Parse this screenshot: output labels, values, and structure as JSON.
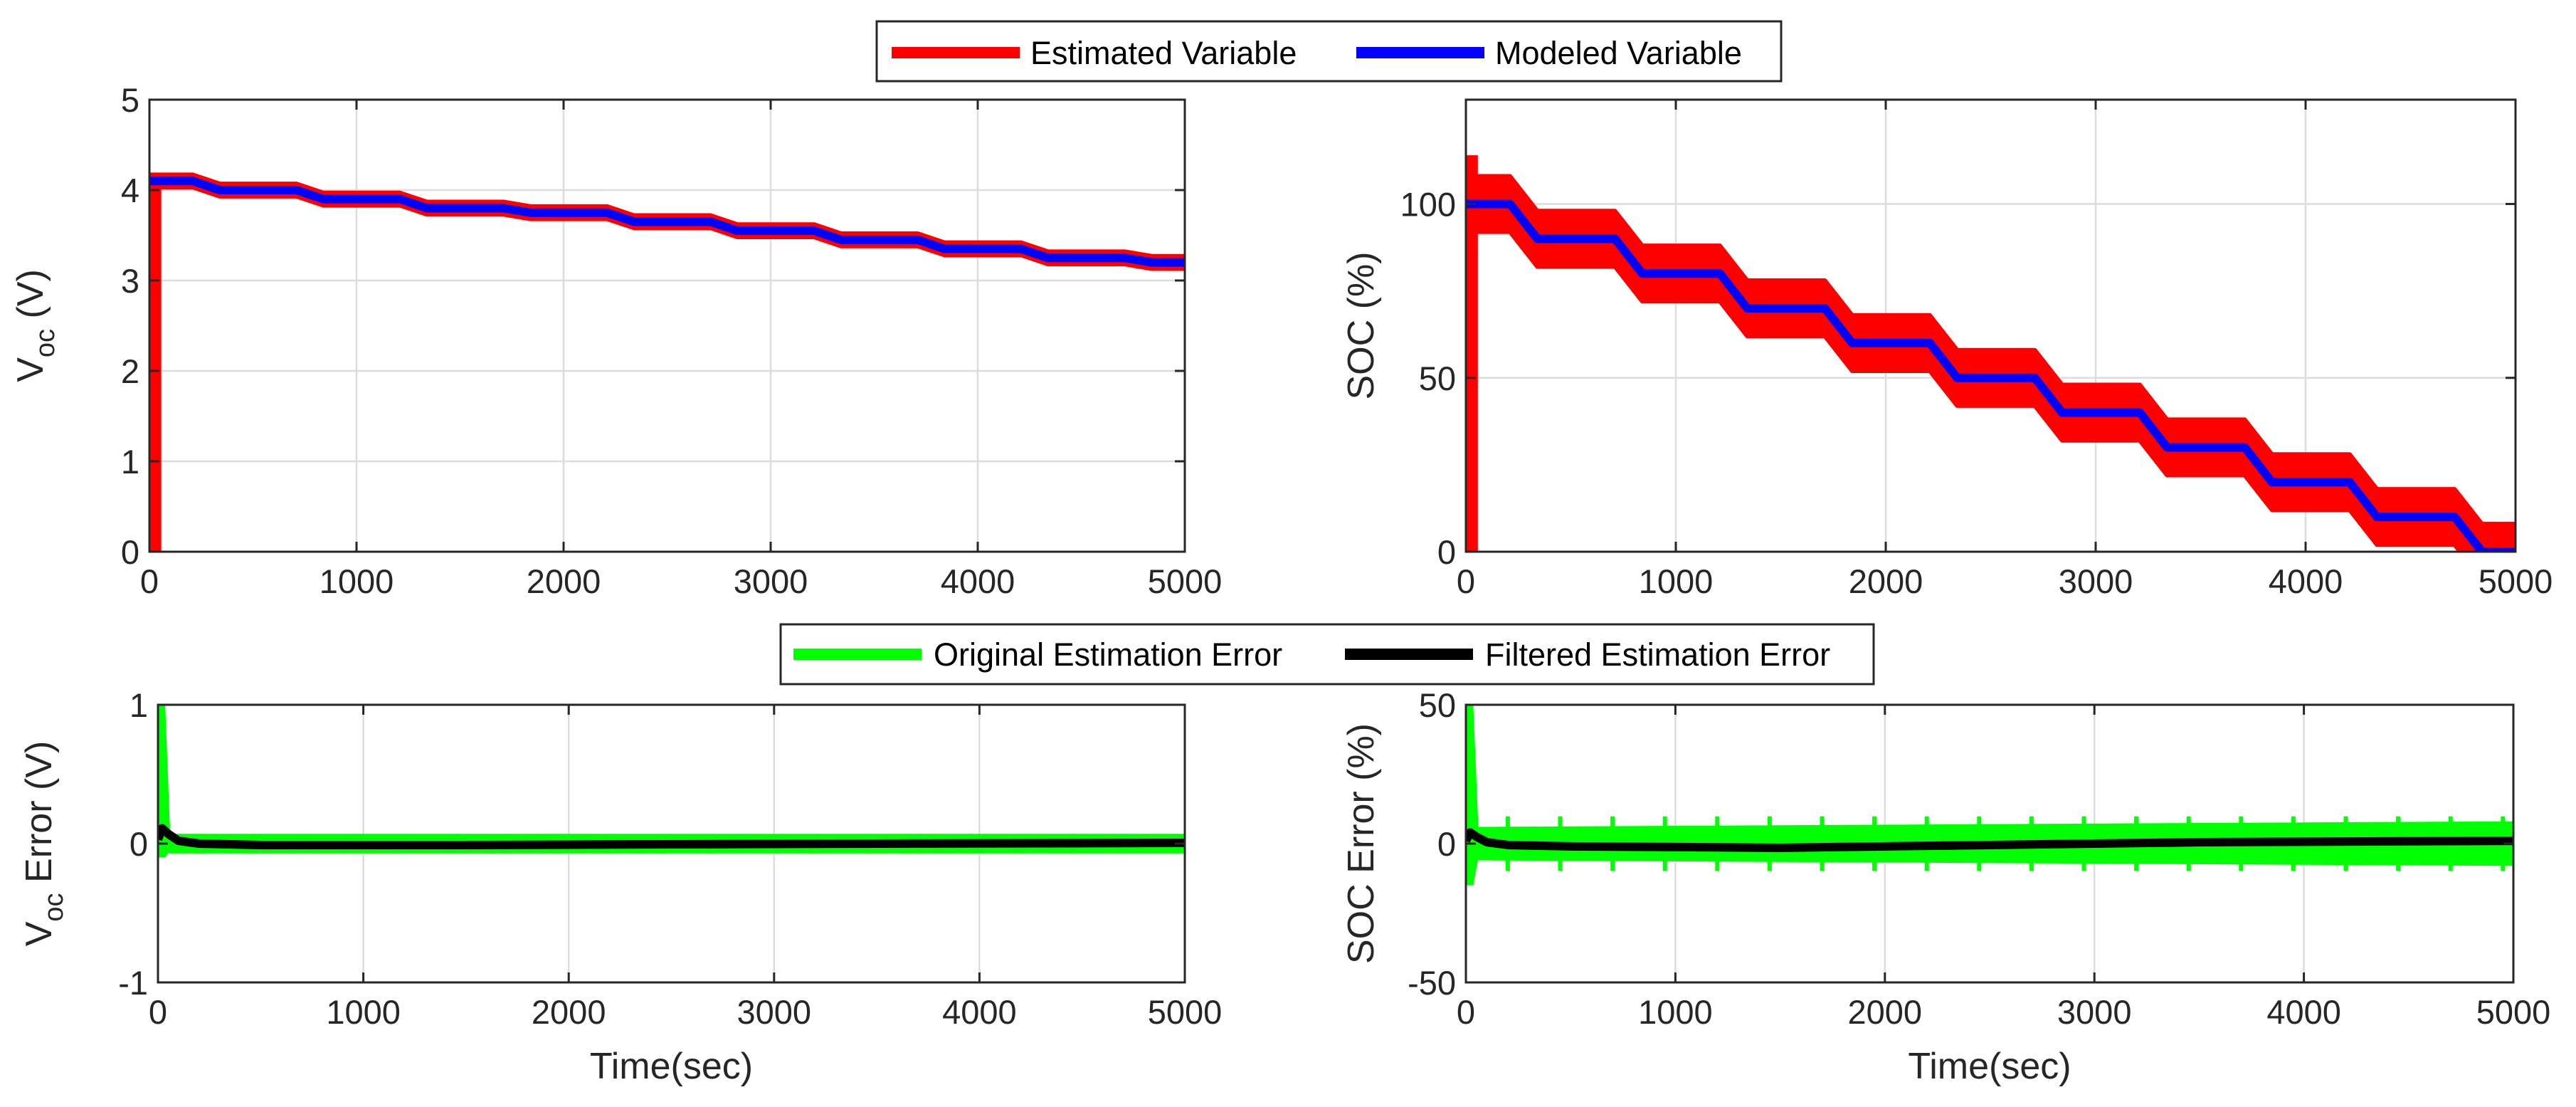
{
  "chart_data": [
    {
      "id": "voc",
      "type": "line",
      "title": "",
      "xlabel": "",
      "ylabel": "V",
      "ylabel_sub": "oc",
      "ylabel_rest": " (V)",
      "xlim": [
        0,
        5000
      ],
      "ylim": [
        0,
        5
      ],
      "xticks": [
        0,
        1000,
        2000,
        3000,
        4000,
        5000
      ],
      "yticks": [
        0,
        1,
        2,
        3,
        4,
        5
      ],
      "grid": true,
      "series": [
        {
          "name": "Estimated Variable",
          "color": "#ff0000",
          "band": 0.07,
          "steps": [
            4.1,
            4.0,
            3.9,
            3.8,
            3.75,
            3.65,
            3.55,
            3.45,
            3.35,
            3.25,
            3.2
          ],
          "initial_spike": [
            0,
            4.15
          ]
        },
        {
          "name": "Modeled Variable",
          "color": "#0000ff",
          "steps": [
            4.1,
            4.0,
            3.9,
            3.8,
            3.75,
            3.65,
            3.55,
            3.45,
            3.35,
            3.25,
            3.2
          ]
        }
      ]
    },
    {
      "id": "soc",
      "type": "line",
      "title": "",
      "xlabel": "",
      "ylabel": "SOC (%)",
      "xlim": [
        0,
        5000
      ],
      "ylim": [
        0,
        130
      ],
      "xticks": [
        0,
        1000,
        2000,
        3000,
        4000,
        5000
      ],
      "yticks": [
        0,
        50,
        100
      ],
      "grid": true,
      "series": [
        {
          "name": "Estimated Variable",
          "color": "#ff0000",
          "band": 8,
          "steps": [
            100,
            90,
            80,
            70,
            60,
            50,
            40,
            30,
            20,
            10,
            0
          ],
          "initial_spike": [
            0,
            114
          ]
        },
        {
          "name": "Modeled Variable",
          "color": "#0000ff",
          "steps": [
            100,
            90,
            80,
            70,
            60,
            50,
            40,
            30,
            20,
            10,
            0
          ]
        }
      ]
    },
    {
      "id": "voc_err",
      "type": "line",
      "title": "",
      "xlabel": "Time(sec)",
      "ylabel": "V",
      "ylabel_sub": "oc",
      "ylabel_rest": " Error (V)",
      "xlim": [
        0,
        5000
      ],
      "ylim": [
        -1,
        1
      ],
      "xticks": [
        0,
        1000,
        2000,
        3000,
        4000,
        5000
      ],
      "yticks": [
        -1,
        0,
        1
      ],
      "grid": true,
      "series": [
        {
          "name": "Original Estimation Error",
          "color": "#00ff00",
          "band": 0.05,
          "initial_spike": [
            -0.1,
            1.0
          ]
        },
        {
          "name": "Filtered Estimation Error",
          "color": "#000000",
          "x": [
            0,
            20,
            50,
            100,
            200,
            500,
            1500,
            2500,
            3500,
            5000
          ],
          "y": [
            0.03,
            0.11,
            0.07,
            0.02,
            0.0,
            -0.01,
            -0.01,
            -0.005,
            0.0,
            0.005
          ]
        }
      ]
    },
    {
      "id": "soc_err",
      "type": "line",
      "title": "",
      "xlabel": "Time(sec)",
      "ylabel": "SOC Error (%)",
      "xlim": [
        0,
        5000
      ],
      "ylim": [
        -50,
        50
      ],
      "xticks": [
        0,
        1000,
        2000,
        3000,
        4000,
        5000
      ],
      "yticks": [
        -50,
        0,
        50
      ],
      "grid": true,
      "series": [
        {
          "name": "Original Estimation Error",
          "color": "#00ff00",
          "band": 5,
          "band_end": 7,
          "initial_spike": [
            -15,
            50
          ]
        },
        {
          "name": "Filtered Estimation Error",
          "color": "#000000",
          "x": [
            0,
            20,
            50,
            100,
            200,
            500,
            1500,
            2500,
            3500,
            5000
          ],
          "y": [
            1,
            4,
            2.5,
            0.5,
            -0.5,
            -1,
            -1.5,
            -0.5,
            0.5,
            1
          ]
        }
      ]
    }
  ],
  "legends": {
    "top": [
      "Estimated Variable",
      "Modeled Variable"
    ],
    "bottom": [
      "Original Estimation Error",
      "Filtered Estimation Error"
    ]
  }
}
